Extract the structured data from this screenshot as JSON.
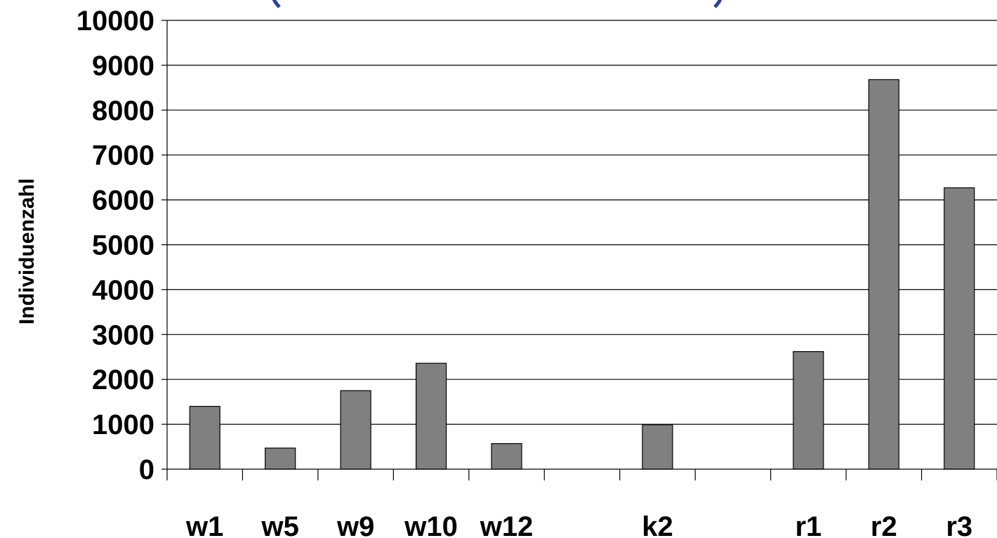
{
  "colors": {
    "bar_fill": "#808080",
    "bar_stroke": "#000000",
    "grid": "#000000",
    "decor_accent": "#2b3f9a"
  },
  "chart_data": {
    "type": "bar",
    "title": "",
    "xlabel": "",
    "ylabel": "Individuenzahl",
    "ylim": [
      0,
      10000
    ],
    "yticks": [
      0,
      1000,
      2000,
      3000,
      4000,
      5000,
      6000,
      7000,
      8000,
      9000,
      10000
    ],
    "grid": true,
    "categories": [
      "w1",
      "w5",
      "w9",
      "w10",
      "w12",
      "",
      "k2",
      "",
      "r1",
      "r2",
      "r3"
    ],
    "values": [
      1400,
      470,
      1750,
      2360,
      570,
      null,
      990,
      null,
      2620,
      8680,
      6270
    ]
  }
}
